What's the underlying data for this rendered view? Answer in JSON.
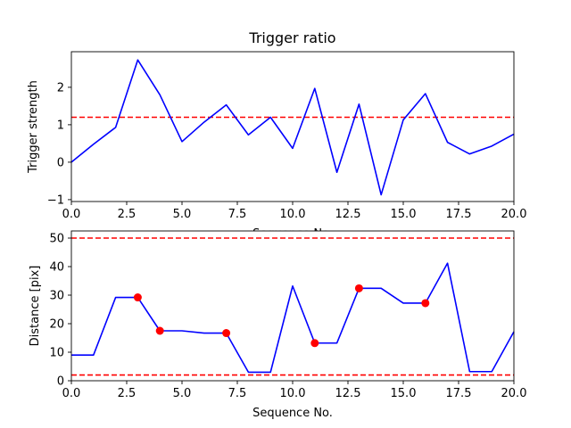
{
  "chart_data": [
    {
      "type": "line",
      "title": "Trigger ratio",
      "xlabel": "Sequence No.",
      "ylabel": "Trigger strength",
      "xlim": [
        0,
        20
      ],
      "ylim": [
        -1.05,
        2.95
      ],
      "xticks": [
        0,
        2.5,
        5,
        7.5,
        10,
        12.5,
        15,
        17.5,
        20
      ],
      "xtick_labels": [
        "0.0",
        "2.5",
        "5.0",
        "7.5",
        "10.0",
        "12.5",
        "15.0",
        "17.5",
        "20.0"
      ],
      "yticks": [
        -1,
        0,
        1,
        2
      ],
      "ytick_labels": [
        "−1",
        "0",
        "1",
        "2"
      ],
      "series": [
        {
          "color": "#0000ff",
          "x": [
            0,
            1,
            2,
            3,
            4,
            5,
            6,
            7,
            8,
            9,
            10,
            11,
            12,
            13,
            14,
            15,
            16,
            17,
            18,
            19,
            20
          ],
          "y": [
            0.0,
            0.48,
            0.93,
            2.73,
            1.8,
            0.55,
            1.07,
            1.53,
            0.73,
            1.2,
            0.37,
            1.97,
            -0.27,
            1.55,
            -0.87,
            1.13,
            1.83,
            0.53,
            0.22,
            0.43,
            0.75
          ]
        }
      ],
      "hlines": [
        {
          "y": 1.2,
          "color": "#ff0000",
          "style": "dashed"
        }
      ],
      "grid": false
    },
    {
      "type": "line",
      "title": "",
      "xlabel": "Sequence No.",
      "ylabel": "Distance [pix]",
      "xlim": [
        0,
        20
      ],
      "ylim": [
        0,
        52.5
      ],
      "xticks": [
        0,
        2.5,
        5,
        7.5,
        10,
        12.5,
        15,
        17.5,
        20
      ],
      "xtick_labels": [
        "0.0",
        "2.5",
        "5.0",
        "7.5",
        "10.0",
        "12.5",
        "15.0",
        "17.5",
        "20.0"
      ],
      "yticks": [
        0,
        10,
        20,
        30,
        40,
        50
      ],
      "ytick_labels": [
        "0",
        "10",
        "20",
        "30",
        "40",
        "50"
      ],
      "series": [
        {
          "color": "#0000ff",
          "x": [
            0,
            1,
            2,
            3,
            4,
            5,
            6,
            7,
            8,
            9,
            10,
            11,
            12,
            13,
            14,
            15,
            16,
            17,
            18,
            19,
            20
          ],
          "y": [
            9,
            9,
            29.2,
            29.2,
            17.5,
            17.5,
            16.7,
            16.7,
            3,
            3,
            33.2,
            13.2,
            13.2,
            32.4,
            32.4,
            27.2,
            27.2,
            41.2,
            3.2,
            3.2,
            17.2
          ]
        }
      ],
      "markers": {
        "color": "#ff0000",
        "x": [
          3,
          4,
          7,
          11,
          13,
          16
        ],
        "y": [
          29.2,
          17.5,
          16.7,
          13.2,
          32.4,
          27.2
        ]
      },
      "hlines": [
        {
          "y": 50,
          "color": "#ff0000",
          "style": "dashed"
        },
        {
          "y": 2,
          "color": "#ff0000",
          "style": "dashed"
        }
      ],
      "grid": false
    }
  ]
}
